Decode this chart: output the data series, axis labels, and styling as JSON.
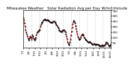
{
  "title": "Milwaukee Weather   Solar Radiation Avg per Day W/m2/minute",
  "line_color": "#ff0000",
  "line_style": "--",
  "line_width": 0.7,
  "marker": ".",
  "marker_color": "#000000",
  "marker_size": 1.0,
  "background_color": "#ffffff",
  "grid_color": "#999999",
  "grid_style": ":",
  "ylim": [
    0,
    350
  ],
  "yticks": [
    50,
    100,
    150,
    200,
    250,
    300,
    350
  ],
  "ytick_labels": [
    "50",
    "100",
    "150",
    "200",
    "250",
    "300",
    "350"
  ],
  "title_fontsize": 4.0,
  "tick_fontsize": 3.0,
  "values": [
    280,
    260,
    230,
    200,
    170,
    150,
    130,
    110,
    90,
    80,
    70,
    90,
    110,
    95,
    80,
    100,
    120,
    110,
    90,
    80,
    70,
    85,
    100,
    120,
    140,
    150,
    155,
    160,
    165,
    170,
    200,
    220,
    230,
    240,
    245,
    255,
    260,
    265,
    270,
    265,
    260,
    255,
    260,
    265,
    258,
    252,
    248,
    245,
    240,
    238,
    235,
    240,
    245,
    248,
    250,
    245,
    240,
    230,
    220,
    210,
    200,
    190,
    180,
    170,
    160,
    155,
    152,
    150,
    155,
    160,
    165,
    170,
    165,
    155,
    145,
    130,
    110,
    85,
    55,
    40,
    30,
    25,
    50,
    80,
    115,
    155,
    195,
    225,
    245,
    255,
    245,
    230,
    205,
    180,
    155,
    130,
    105,
    90,
    80,
    75,
    85,
    100,
    115,
    125,
    130,
    125,
    115,
    100,
    90,
    80,
    75,
    70,
    65,
    60,
    55,
    50,
    55,
    60,
    55,
    45,
    40,
    35,
    30,
    30,
    35,
    40,
    35,
    30,
    25,
    30,
    35,
    30,
    25,
    20,
    25,
    20,
    15,
    20,
    25,
    20,
    15,
    20,
    25,
    20,
    30,
    40,
    50,
    55,
    45,
    30,
    20,
    15,
    20,
    25,
    30
  ],
  "vgrid_positions": [
    14,
    28,
    42,
    56,
    70,
    84,
    98,
    112,
    126,
    140
  ],
  "xtick_labels": [
    "7/1",
    "7/8",
    "7/15",
    "7/22",
    "8/1",
    "8/8",
    "8/15",
    "8/22",
    "9/1",
    "9/8",
    "9/15",
    "9/22",
    "10/1",
    "10/8",
    "10/15",
    "10/22"
  ]
}
